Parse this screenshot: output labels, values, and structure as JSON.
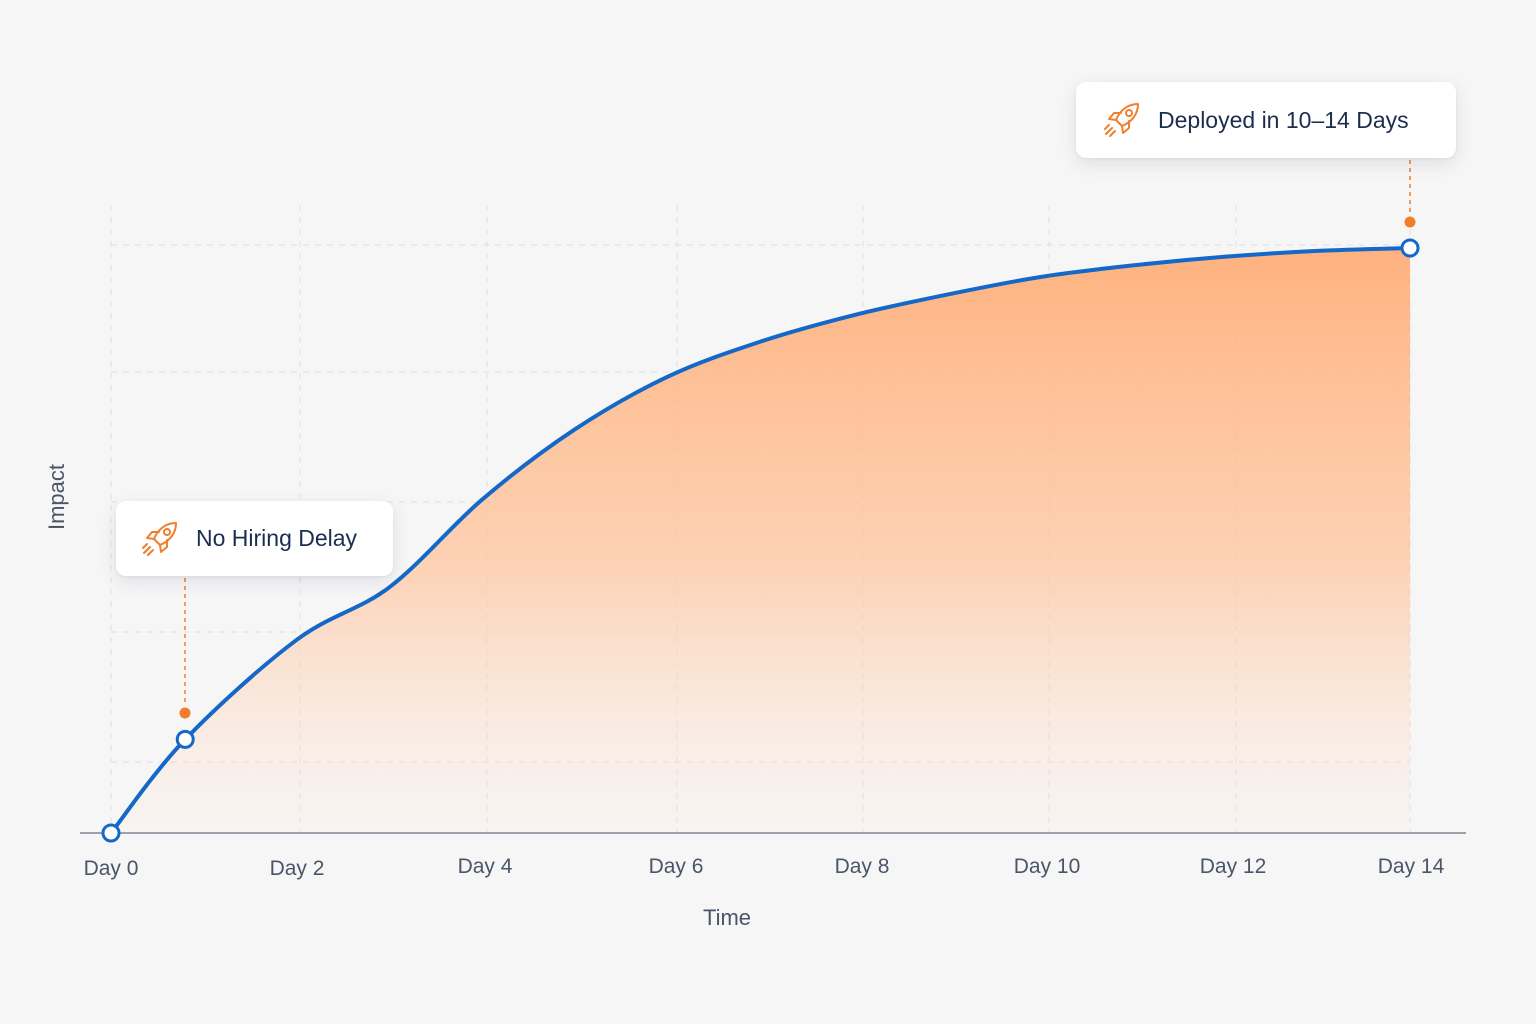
{
  "chart_data": {
    "type": "area",
    "xlabel": "Time",
    "ylabel": "Impact",
    "x_tick_labels": [
      "Day 0",
      "Day 2",
      "Day 4",
      "Day 6",
      "Day 8",
      "Day 10",
      "Day 12",
      "Day 14"
    ],
    "x_ticks": [
      0,
      2,
      4,
      6,
      8,
      10,
      12,
      14
    ],
    "xlim": [
      0,
      14
    ],
    "ylim": [
      0,
      100
    ],
    "y_tick_labels": [],
    "grid": true,
    "series": [
      {
        "x": [
          0,
          0.8,
          2,
          3,
          4,
          5,
          6,
          7,
          8,
          9,
          10,
          11,
          12,
          13,
          14
        ],
        "y": [
          0,
          16,
          33,
          42,
          57,
          69,
          78,
          84,
          88.5,
          92,
          95,
          97,
          98.5,
          99.5,
          100
        ],
        "line_color": "#1468c8",
        "fill_color": "#ffb37f"
      }
    ],
    "markers": [
      {
        "x": 0,
        "y": 0
      },
      {
        "x": 0.8,
        "y": 16
      },
      {
        "x": 14,
        "y": 100
      }
    ],
    "annotations": [
      {
        "text": "No Hiring Delay",
        "x": 0.8,
        "y": 16,
        "icon": "rocket-icon"
      },
      {
        "text": "Deployed in 10–14 Days",
        "x": 14,
        "y": 100,
        "icon": "rocket-icon"
      }
    ],
    "colors": {
      "line": "#1468c8",
      "fill": "#ff9a5a",
      "accent": "#f07e2c",
      "text": "#1c2e4f",
      "axis": "#7d8596",
      "grid": "#dedfe3"
    }
  }
}
